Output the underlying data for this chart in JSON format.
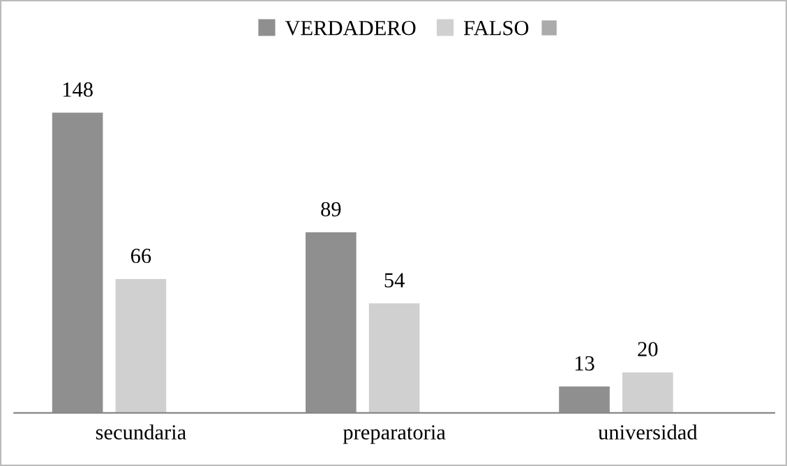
{
  "chart_data": {
    "type": "bar",
    "categories": [
      "secundaria",
      "preparatoria",
      "universidad"
    ],
    "series": [
      {
        "name": "VERDADERO",
        "color": "#8f8f8f",
        "values": [
          148,
          89,
          13
        ]
      },
      {
        "name": "FALSO",
        "color": "#d0d0d0",
        "values": [
          66,
          54,
          20
        ]
      }
    ],
    "data_labels": true,
    "legend": "top",
    "grid": false
  }
}
